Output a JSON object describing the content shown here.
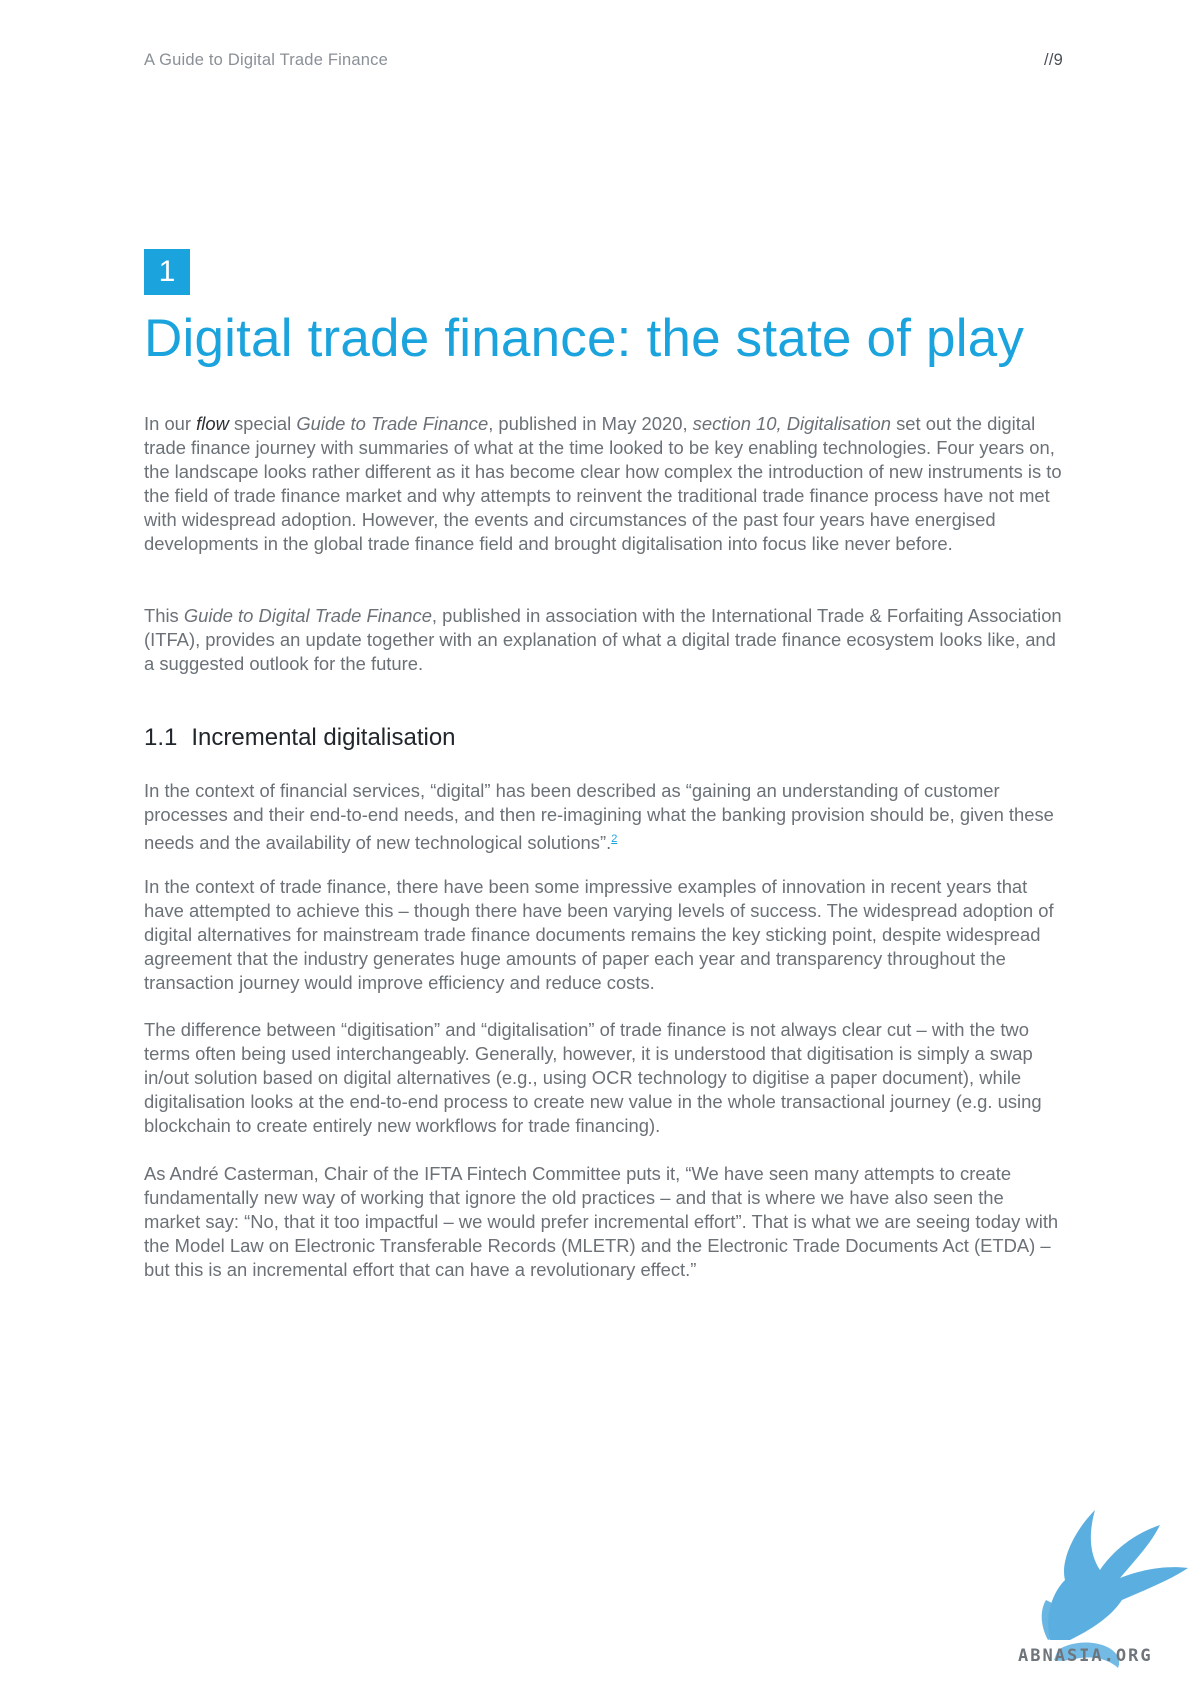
{
  "header": {
    "running_title": "A Guide to Digital Trade Finance",
    "page_number": "//9"
  },
  "chapter": {
    "number": "1",
    "title": "Digital trade finance: the state of play"
  },
  "intro": {
    "p1": {
      "t1": "In our ",
      "flow": "flow",
      "t2": " special ",
      "guide": "Guide to Trade Finance",
      "t3": ", published in May 2020, ",
      "section": "section 10, Digitalisation",
      "t4": " set out the digital trade finance journey with summaries of what at the time looked to be key enabling technologies. Four years on, the landscape looks rather different as it has become clear how complex the introduction of new instruments is to the field of trade finance market and why attempts to reinvent the traditional trade finance process have not met with widespread adoption. However, the events and circumstances of the past four years have energised developments in the global trade finance field and brought digitalisation into focus like never before."
    },
    "p2": {
      "t1": "This ",
      "guide": "Guide to Digital Trade Finance",
      "t2": ", published in association with the International Trade & Forfaiting Association (ITFA), provides an update together with an explanation of what a digital trade finance ecosystem looks like, and a suggested outlook for the future."
    }
  },
  "section_1_1": {
    "number": "1.1",
    "title": "Incremental digitalisation",
    "p1": {
      "text": "In the context of financial services, “digital” has been described as “gaining an understanding of customer processes and their end-to-end needs, and then re-imagining what the banking provision should be, given these needs and the availability of new technological solutions”.",
      "footnote": "2"
    },
    "p2": "In the context of trade finance, there have been some impressive examples of innovation in recent years that have attempted to achieve this – though there have been varying levels of success. The widespread adoption of digital alternatives for mainstream trade finance documents remains the key sticking point, despite widespread agreement that the industry generates huge amounts of paper each year and transparency throughout the transaction journey would improve efficiency and reduce costs.",
    "p3": "The difference between “digitisation” and “digitalisation” of trade finance is not always clear cut – with the two terms often being used interchangeably. Generally, however, it is understood that digitisation is simply a swap in/out solution based on digital alternatives (e.g., using OCR technology to digitise a paper document), while digitalisation looks at the end-to-end process to create new value in the whole transactional journey (e.g. using blockchain to create entirely new workflows for trade financing).",
    "p4": "As André Casterman, Chair of the IFTA Fintech Committee puts it, “We have seen many attempts to create fundamentally new way of working that ignore the old practices – and that is where we have also seen the market say: “No, that it too impactful – we would prefer incremental effort”. That is what we are seeing today with the Model Law on Electronic Transferable Records (MLETR) and the Electronic Trade Documents Act (ETDA) – but this is an incremental effort that can have a revolutionary effect.”"
  },
  "watermark": {
    "text": "ABNASIA.ORG",
    "icon": "griffin-logo-icon",
    "color": "#5aaee0"
  },
  "colors": {
    "accent": "#1aa3dd",
    "body_text": "#6b7177",
    "heading_text": "#20262c"
  }
}
